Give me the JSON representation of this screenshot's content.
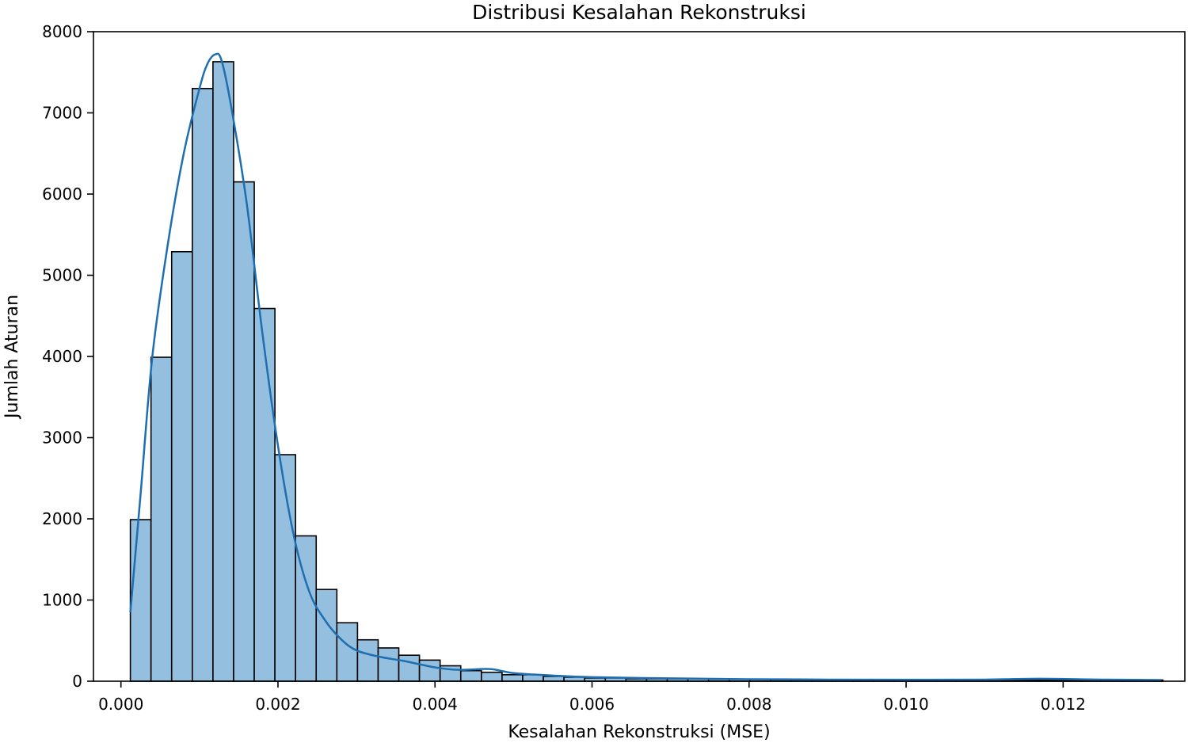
{
  "chart_data": {
    "type": "bar",
    "title": "Distribusi Kesalahan Rekonstruksi",
    "xlabel": "Kesalahan Rekonstruksi (MSE)",
    "ylabel": "Jumlah Aturan",
    "xlim": [
      -0.00035,
      0.01355
    ],
    "ylim": [
      0,
      8000
    ],
    "x_ticks": [
      "0.000",
      "0.002",
      "0.004",
      "0.006",
      "0.008",
      "0.010",
      "0.012"
    ],
    "y_ticks": [
      "0",
      "1000",
      "2000",
      "3000",
      "4000",
      "5000",
      "6000",
      "7000",
      "8000"
    ],
    "grid": false,
    "histogram": {
      "bin_start": 0.00012,
      "bin_width": 0.000263,
      "counts": [
        1990,
        3990,
        5290,
        7300,
        7630,
        6150,
        4590,
        2790,
        1790,
        1130,
        720,
        510,
        410,
        320,
        260,
        190,
        130,
        110,
        80,
        80,
        60,
        50,
        40,
        40,
        30,
        30,
        30,
        30,
        25,
        25,
        25,
        20,
        20,
        20,
        20,
        15,
        15,
        15,
        15,
        15,
        15,
        15,
        15,
        15,
        15,
        15,
        15,
        15,
        15,
        15
      ]
    },
    "kde": {
      "x": [
        0.00012,
        0.00025,
        0.0004,
        0.0006,
        0.0008,
        0.001,
        0.0011,
        0.0012,
        0.00128,
        0.0014,
        0.0016,
        0.0018,
        0.002,
        0.0022,
        0.0024,
        0.0026,
        0.0028,
        0.003,
        0.0033,
        0.0036,
        0.004,
        0.0043,
        0.0047,
        0.005,
        0.0055,
        0.006,
        0.007,
        0.008,
        0.009,
        0.01,
        0.011,
        0.0117,
        0.0125,
        0.01325
      ],
      "y": [
        850,
        2300,
        4000,
        5400,
        6500,
        7300,
        7600,
        7720,
        7650,
        7100,
        5900,
        4300,
        2900,
        1800,
        1100,
        750,
        520,
        380,
        300,
        250,
        170,
        140,
        150,
        100,
        70,
        50,
        35,
        25,
        20,
        18,
        20,
        30,
        20,
        15
      ]
    },
    "colors": {
      "bar_fill": "#94bfdf",
      "bar_edge": "#000000",
      "kde_line": "#1f6fb0"
    }
  }
}
